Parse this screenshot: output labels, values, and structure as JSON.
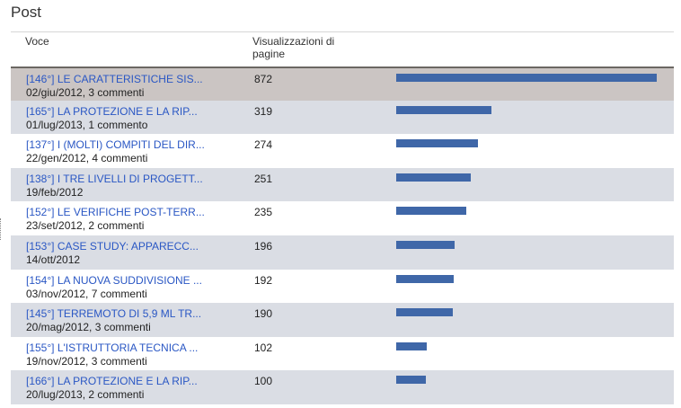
{
  "page": {
    "title": "Post"
  },
  "table": {
    "headers": {
      "voce": "Voce",
      "views": "Visualizzazioni di pagine"
    },
    "max_views": 872,
    "rows": [
      {
        "title": "[146°] LE CARATTERISTICHE SIS...",
        "meta": "02/giu/2012, 3 commenti",
        "views": 872
      },
      {
        "title": "[165°] LA PROTEZIONE E LA RIP...",
        "meta": "01/lug/2013, 1 commento",
        "views": 319
      },
      {
        "title": "[137°] I (MOLTI) COMPITI DEL DIR...",
        "meta": "22/gen/2012, 4 commenti",
        "views": 274
      },
      {
        "title": "[138°] I TRE LIVELLI DI PROGETT...",
        "meta": "19/feb/2012",
        "views": 251
      },
      {
        "title": "[152°] LE VERIFICHE POST-TERR...",
        "meta": "23/set/2012, 2 commenti",
        "views": 235
      },
      {
        "title": "[153°] CASE STUDY: APPARECC...",
        "meta": "14/ott/2012",
        "views": 196
      },
      {
        "title": "[154°] LA NUOVA SUDDIVISIONE ...",
        "meta": "03/nov/2012, 7 commenti",
        "views": 192
      },
      {
        "title": "[145°] TERREMOTO DI 5,9 ML TR...",
        "meta": "20/mag/2012, 3 commenti",
        "views": 190
      },
      {
        "title": "[155°] L'ISTRUTTORIA TECNICA ...",
        "meta": "19/nov/2012, 3 commenti",
        "views": 102
      },
      {
        "title": "[166°] LA PROTEZIONE E LA RIP...",
        "meta": "20/lug/2013, 2 commenti",
        "views": 100
      }
    ]
  },
  "colors": {
    "bar": "#3f67a8",
    "link": "#2a57c4",
    "row_alt": "#dadde4",
    "row_selected": "#cbc5c3"
  }
}
